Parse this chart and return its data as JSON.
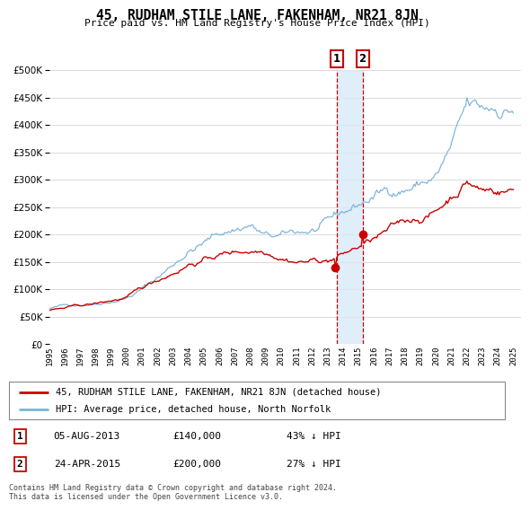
{
  "title": "45, RUDHAM STILE LANE, FAKENHAM, NR21 8JN",
  "subtitle": "Price paid vs. HM Land Registry's House Price Index (HPI)",
  "legend_line1": "45, RUDHAM STILE LANE, FAKENHAM, NR21 8JN (detached house)",
  "legend_line2": "HPI: Average price, detached house, North Norfolk",
  "transaction1_date": "05-AUG-2013",
  "transaction1_price": "£140,000",
  "transaction1_hpi": "43% ↓ HPI",
  "transaction2_date": "24-APR-2015",
  "transaction2_price": "£200,000",
  "transaction2_hpi": "27% ↓ HPI",
  "footnote": "Contains HM Land Registry data © Crown copyright and database right 2024.\nThis data is licensed under the Open Government Licence v3.0.",
  "hpi_color": "#7ab3d8",
  "price_color": "#cc0000",
  "vline_color": "#cc0000",
  "vshade_color": "#d8eaf7",
  "ylim": [
    0,
    500000
  ],
  "yticks": [
    0,
    50000,
    100000,
    150000,
    200000,
    250000,
    300000,
    350000,
    400000,
    450000,
    500000
  ],
  "year_start": 1995,
  "year_end": 2025,
  "transaction1_year": 2013.583,
  "transaction2_year": 2015.25,
  "transaction1_value": 140000,
  "transaction2_value": 200000
}
